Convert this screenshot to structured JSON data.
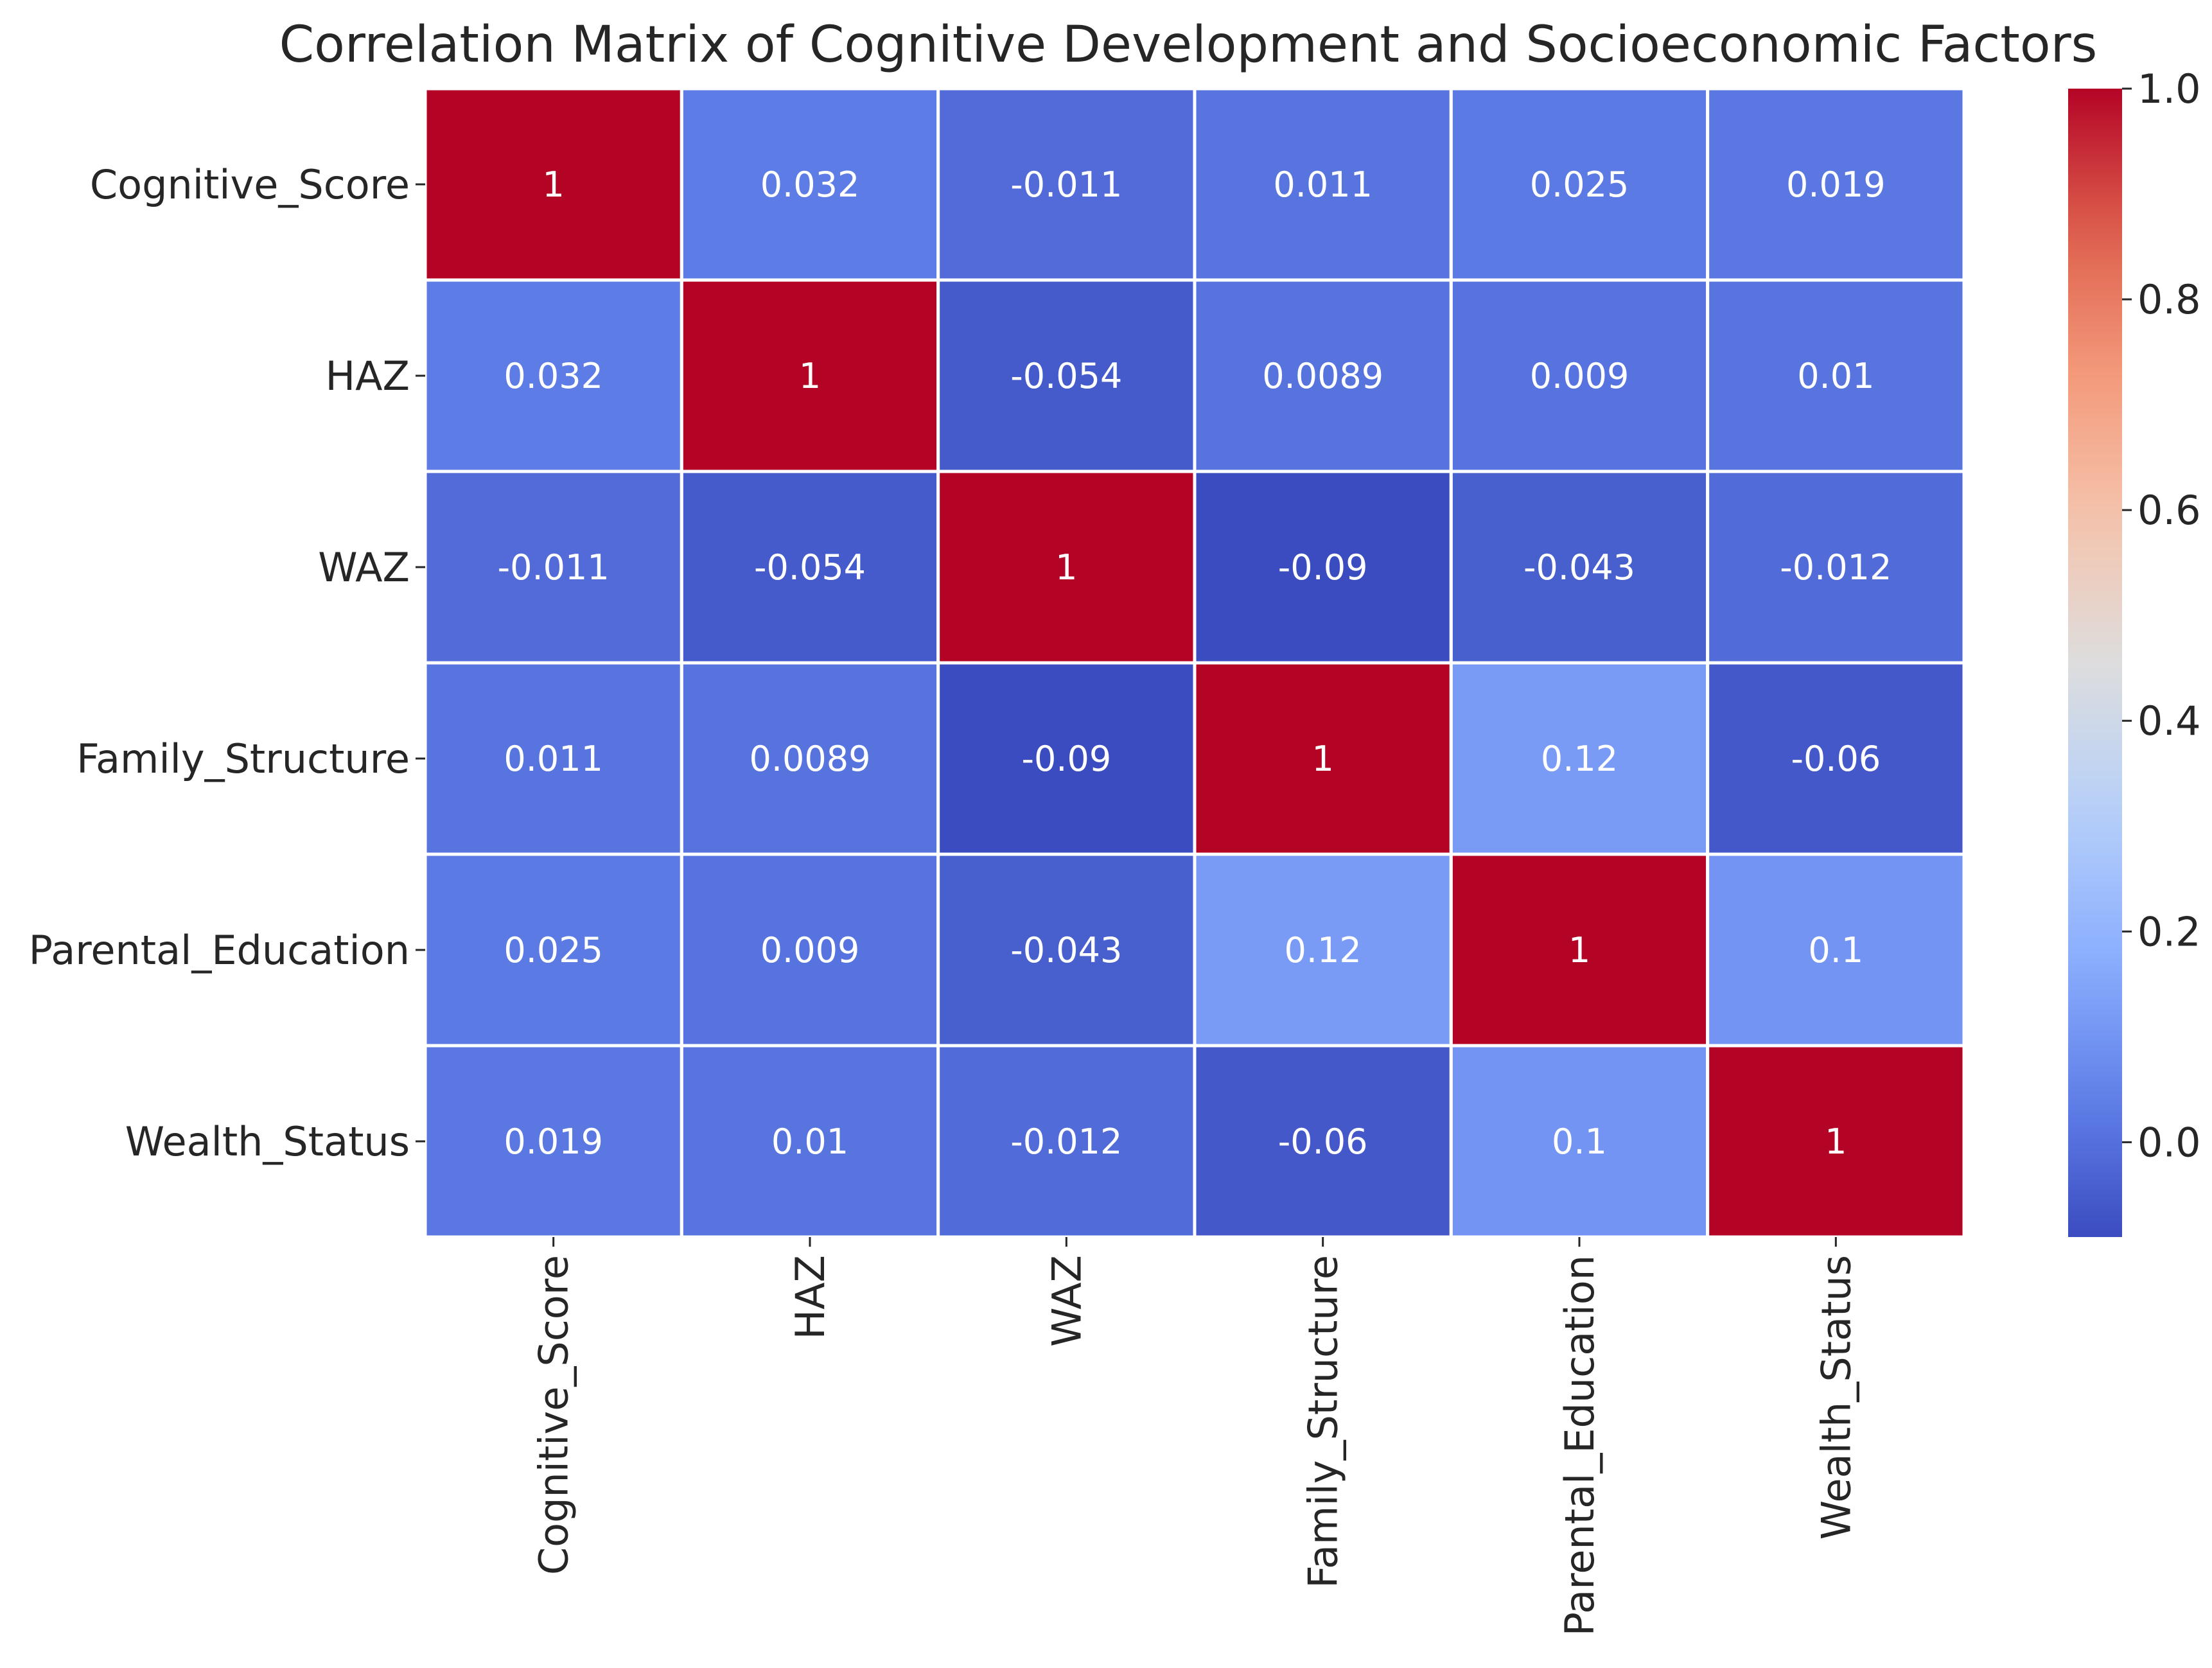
{
  "chart_data": {
    "type": "heatmap",
    "title": "Correlation Matrix of Cognitive Development and Socioeconomic Factors",
    "xlabel": "",
    "ylabel": "",
    "variables": [
      "Cognitive_Score",
      "HAZ",
      "WAZ",
      "Family_Structure",
      "Parental_Education",
      "Wealth_Status"
    ],
    "values": [
      [
        1,
        0.032,
        -0.011,
        0.011,
        0.025,
        0.019
      ],
      [
        0.032,
        1,
        -0.054,
        0.0089,
        0.009,
        0.01
      ],
      [
        -0.011,
        -0.054,
        1,
        -0.09,
        -0.043,
        -0.012
      ],
      [
        0.011,
        0.0089,
        -0.09,
        1,
        0.12,
        -0.06
      ],
      [
        0.025,
        0.009,
        -0.043,
        0.12,
        1,
        0.1
      ],
      [
        0.019,
        0.01,
        -0.012,
        -0.06,
        0.1,
        1
      ]
    ],
    "labels": [
      [
        "1",
        "0.032",
        "-0.011",
        "0.011",
        "0.025",
        "0.019"
      ],
      [
        "0.032",
        "1",
        "-0.054",
        "0.0089",
        "0.009",
        "0.01"
      ],
      [
        "-0.011",
        "-0.054",
        "1",
        "-0.09",
        "-0.043",
        "-0.012"
      ],
      [
        "0.011",
        "0.0089",
        "-0.09",
        "1",
        "0.12",
        "-0.06"
      ],
      [
        "0.025",
        "0.009",
        "-0.043",
        "0.12",
        "1",
        "0.1"
      ],
      [
        "0.019",
        "0.01",
        "-0.012",
        "-0.06",
        "0.1",
        "1"
      ]
    ],
    "colorbar": {
      "min": -0.09,
      "max": 1.0,
      "ticks": [
        0.0,
        0.2,
        0.4,
        0.6,
        0.8,
        1.0
      ],
      "tick_labels": [
        "0.0",
        "0.2",
        "0.4",
        "0.6",
        "0.8",
        "1.0"
      ],
      "colormap": "coolwarm"
    },
    "grid": false,
    "legend": "colorbar-right"
  }
}
